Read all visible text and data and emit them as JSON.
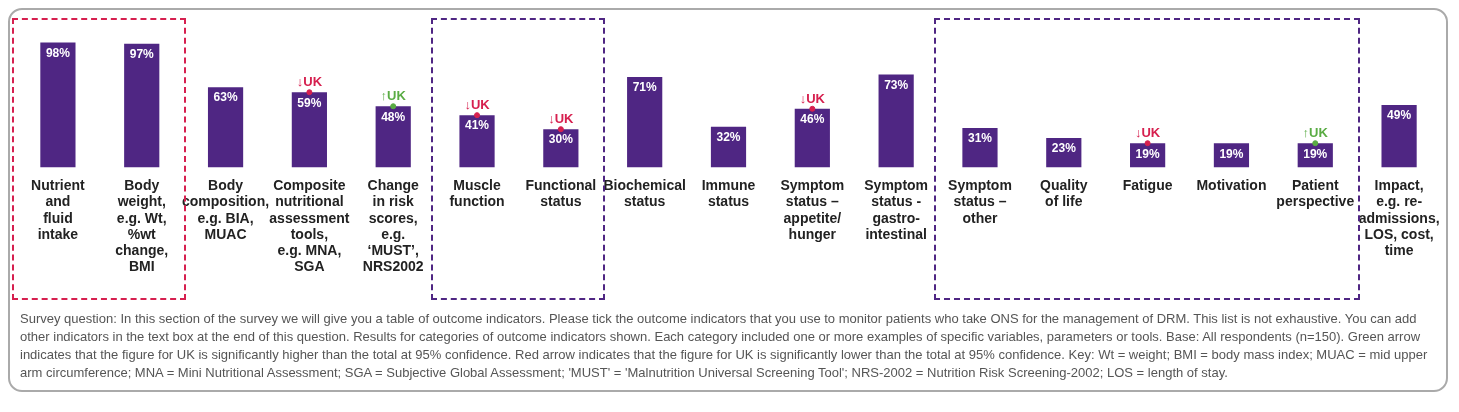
{
  "chart_data": {
    "type": "bar",
    "categories": [
      "Nutrient\nand\nfluid\nintake",
      "Body\nweight,\ne.g. Wt,\n%wt\nchange,\nBMI",
      "Body\ncomposition,\ne.g. BIA,\nMUAC",
      "Composite\nnutritional\nassessment\ntools,\ne.g. MNA,\nSGA",
      "Change\nin risk\nscores,\ne.g.\n‘MUST’,\nNRS2002",
      "Muscle\nfunction",
      "Functional\nstatus",
      "Biochemical\nstatus",
      "Immune\nstatus",
      "Symptom\nstatus –\nappetite/\nhunger",
      "Symptom\nstatus -\ngastro-\nintestinal",
      "Symptom\nstatus –\nother",
      "Quality\nof life",
      "Fatigue",
      "Motivation",
      "Patient\nperspective",
      "Impact,\ne.g. re-\nadmissions,\nLOS, cost,\ntime"
    ],
    "series": [
      {
        "color": "#4f2683",
        "values": [
          98,
          97,
          63,
          59,
          48,
          41,
          30,
          71,
          32,
          46,
          73,
          31,
          23,
          19,
          19,
          19,
          49
        ],
        "value_labels": [
          "98%",
          "97%",
          "63%",
          "59%",
          "48%",
          "41%",
          "30%",
          "71%",
          "32%",
          "46%",
          "73%",
          "31%",
          "23%",
          "19%",
          "19%",
          "19%",
          "49%"
        ]
      },
      {
        "type": "scatter",
        "marker": "circle",
        "color": "#d6204f",
        "x": [
          "Composite\nnutritional\nassessment\ntools,\ne.g. MNA,\nSGA",
          "Muscle\nfunction",
          "Functional\nstatus",
          "Symptom\nstatus –\nappetite/\nhunger",
          "Fatigue"
        ],
        "values": [
          59,
          41,
          30,
          46,
          19
        ],
        "value_labels": [
          "↓UK",
          "↓UK",
          "↓UK",
          "↓UK",
          "↓UK"
        ]
      },
      {
        "type": "scatter",
        "marker": "circle",
        "color": "#5aac44",
        "x": [
          "Change\nin risk\nscores,\ne.g.\n‘MUST’,\nNRS2002",
          "Patient\nperspective"
        ],
        "values": [
          48,
          19
        ],
        "value_labels": [
          "↑UK",
          "↑UK"
        ]
      }
    ],
    "annotations": [
      "Survey question: In this section of the survey we will give you a table of outcome indicators. Please tick the outcome indicators that you use to monitor patients who take ONS for the management of DRM. This list is not exhaustive. You can add other indicators in the text box at the end of this question. Results for categories of outcome indicators shown. Each category included one or more examples of specific variables, parameters or tools. Base: All respondents (n=150). Green arrow indicates that the figure for UK is significantly higher than the total at 95% confidence. Red arrow indicates that the figure for UK is significantly lower than the total at 95% confidence. Key: Wt = weight; BMI = body mass index; MUAC = mid upper arm circumference; MNA = Mini Nutritional Assessment; SGA = Subjective Global Assessment; 'MUST' = 'Malnutrition Universal Screening Tool'; NRS-2002 = Nutrition Risk Screening-2002; LOS = length of stay."
    ]
  }
}
